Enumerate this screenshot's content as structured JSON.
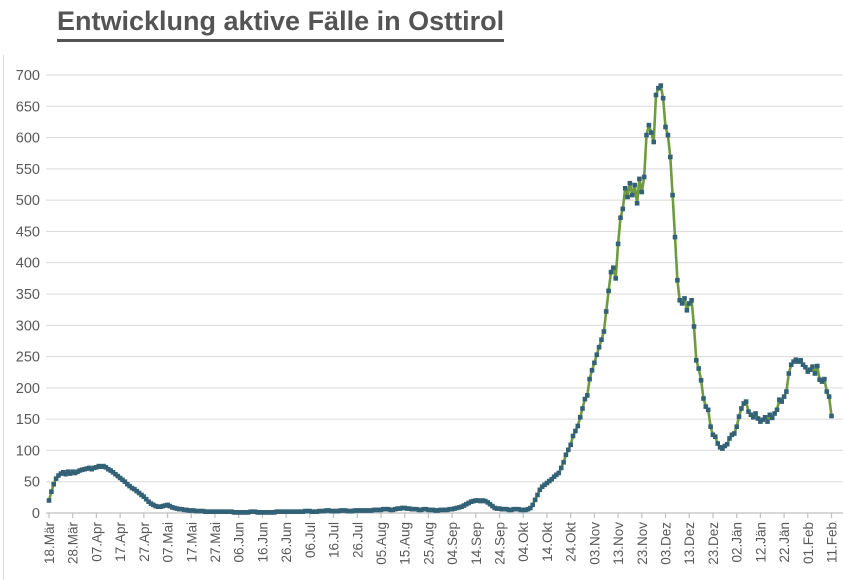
{
  "chart_data": {
    "type": "line",
    "title": "Entwicklung aktive Fälle in Osttirol",
    "xlabel": "",
    "ylabel": "",
    "ylim": [
      0,
      700
    ],
    "y_tick_step": 50,
    "y_tick_labels": [
      "0",
      "50",
      "100",
      "150",
      "200",
      "250",
      "300",
      "350",
      "400",
      "450",
      "500",
      "550",
      "600",
      "650",
      "700"
    ],
    "x_tick_labels": [
      "18.Mär",
      "28.Mär",
      "07.Apr",
      "17.Apr",
      "27.Apr",
      "07.Mai",
      "17.Mai",
      "27.Mai",
      "06.Jun",
      "16.Jun",
      "26.Jun",
      "06.Jul",
      "16.Jul",
      "26.Jul",
      "05.Aug",
      "15.Aug",
      "25.Aug",
      "04.Sep",
      "14.Sep",
      "24.Sep",
      "04.Okt",
      "14.Okt",
      "24.Okt",
      "03.Nov",
      "13.Nov",
      "23.Nov",
      "03.Dez",
      "13.Dez",
      "23.Dez",
      "02.Jän",
      "12.Jän",
      "22.Jän",
      "01.Feb",
      "11.Feb"
    ],
    "x_tick_interval": 10,
    "grid": "horizontal",
    "legend": "none",
    "marker": "square",
    "series": [
      {
        "values": [
          20,
          34,
          46,
          55,
          60,
          63,
          65,
          62,
          66,
          63,
          66,
          64,
          66,
          68,
          69,
          70,
          71,
          72,
          70,
          72,
          73,
          75,
          74,
          75,
          73,
          70,
          68,
          65,
          62,
          59,
          56,
          53,
          50,
          46,
          43,
          40,
          38,
          35,
          32,
          29,
          26,
          22,
          18,
          15,
          13,
          11,
          10,
          10,
          11,
          12,
          13,
          11,
          9,
          8,
          7,
          6,
          6,
          5,
          5,
          4,
          4,
          4,
          3,
          3,
          3,
          3,
          2,
          2,
          2,
          2,
          2,
          2,
          2,
          2,
          2,
          2,
          2,
          2,
          1,
          1,
          1,
          1,
          1,
          1,
          1,
          2,
          2,
          2,
          1,
          1,
          1,
          1,
          1,
          1,
          1,
          1,
          2,
          2,
          2,
          2,
          2,
          2,
          2,
          2,
          2,
          2,
          2,
          2,
          3,
          3,
          3,
          2,
          2,
          2,
          3,
          3,
          3,
          4,
          4,
          3,
          3,
          3,
          3,
          4,
          4,
          4,
          3,
          3,
          3,
          4,
          4,
          4,
          4,
          4,
          4,
          4,
          4,
          5,
          5,
          5,
          5,
          6,
          6,
          6,
          5,
          5,
          6,
          7,
          7,
          8,
          8,
          7,
          7,
          6,
          6,
          6,
          5,
          5,
          6,
          6,
          5,
          5,
          5,
          4,
          4,
          5,
          5,
          5,
          5,
          6,
          6,
          7,
          8,
          9,
          10,
          12,
          14,
          16,
          18,
          19,
          20,
          20,
          19,
          20,
          19,
          17,
          14,
          11,
          8,
          7,
          7,
          6,
          6,
          6,
          5,
          5,
          6,
          6,
          6,
          5,
          5,
          5,
          6,
          8,
          13,
          21,
          29,
          37,
          42,
          45,
          48,
          51,
          54,
          58,
          61,
          64,
          72,
          81,
          93,
          101,
          109,
          123,
          131,
          139,
          153,
          167,
          182,
          188,
          214,
          228,
          240,
          253,
          265,
          277,
          290,
          322,
          355,
          385,
          392,
          375,
          430,
          472,
          486,
          519,
          505,
          527,
          508,
          524,
          495,
          534,
          513,
          537,
          604,
          620,
          608,
          593,
          668,
          679,
          683,
          663,
          617,
          604,
          569,
          508,
          441,
          372,
          340,
          335,
          343,
          324,
          335,
          340,
          298,
          244,
          231,
          212,
          183,
          170,
          165,
          138,
          125,
          122,
          111,
          105,
          103,
          107,
          110,
          119,
          125,
          127,
          138,
          154,
          167,
          175,
          178,
          162,
          157,
          153,
          159,
          151,
          146,
          149,
          153,
          146,
          157,
          152,
          159,
          165,
          181,
          178,
          186,
          194,
          223,
          237,
          242,
          245,
          242,
          244,
          237,
          233,
          226,
          229,
          234,
          223,
          235,
          213,
          210,
          214,
          194,
          186,
          155
        ]
      }
    ]
  },
  "styles": {
    "line_color": "#6e9b3f",
    "marker_color": "#336277",
    "title_color": "#545454",
    "axis_label_color": "#595959",
    "gridline_color": "#d9d9d9",
    "axis_line_color": "#bfbfbf",
    "background": "#ffffff"
  }
}
